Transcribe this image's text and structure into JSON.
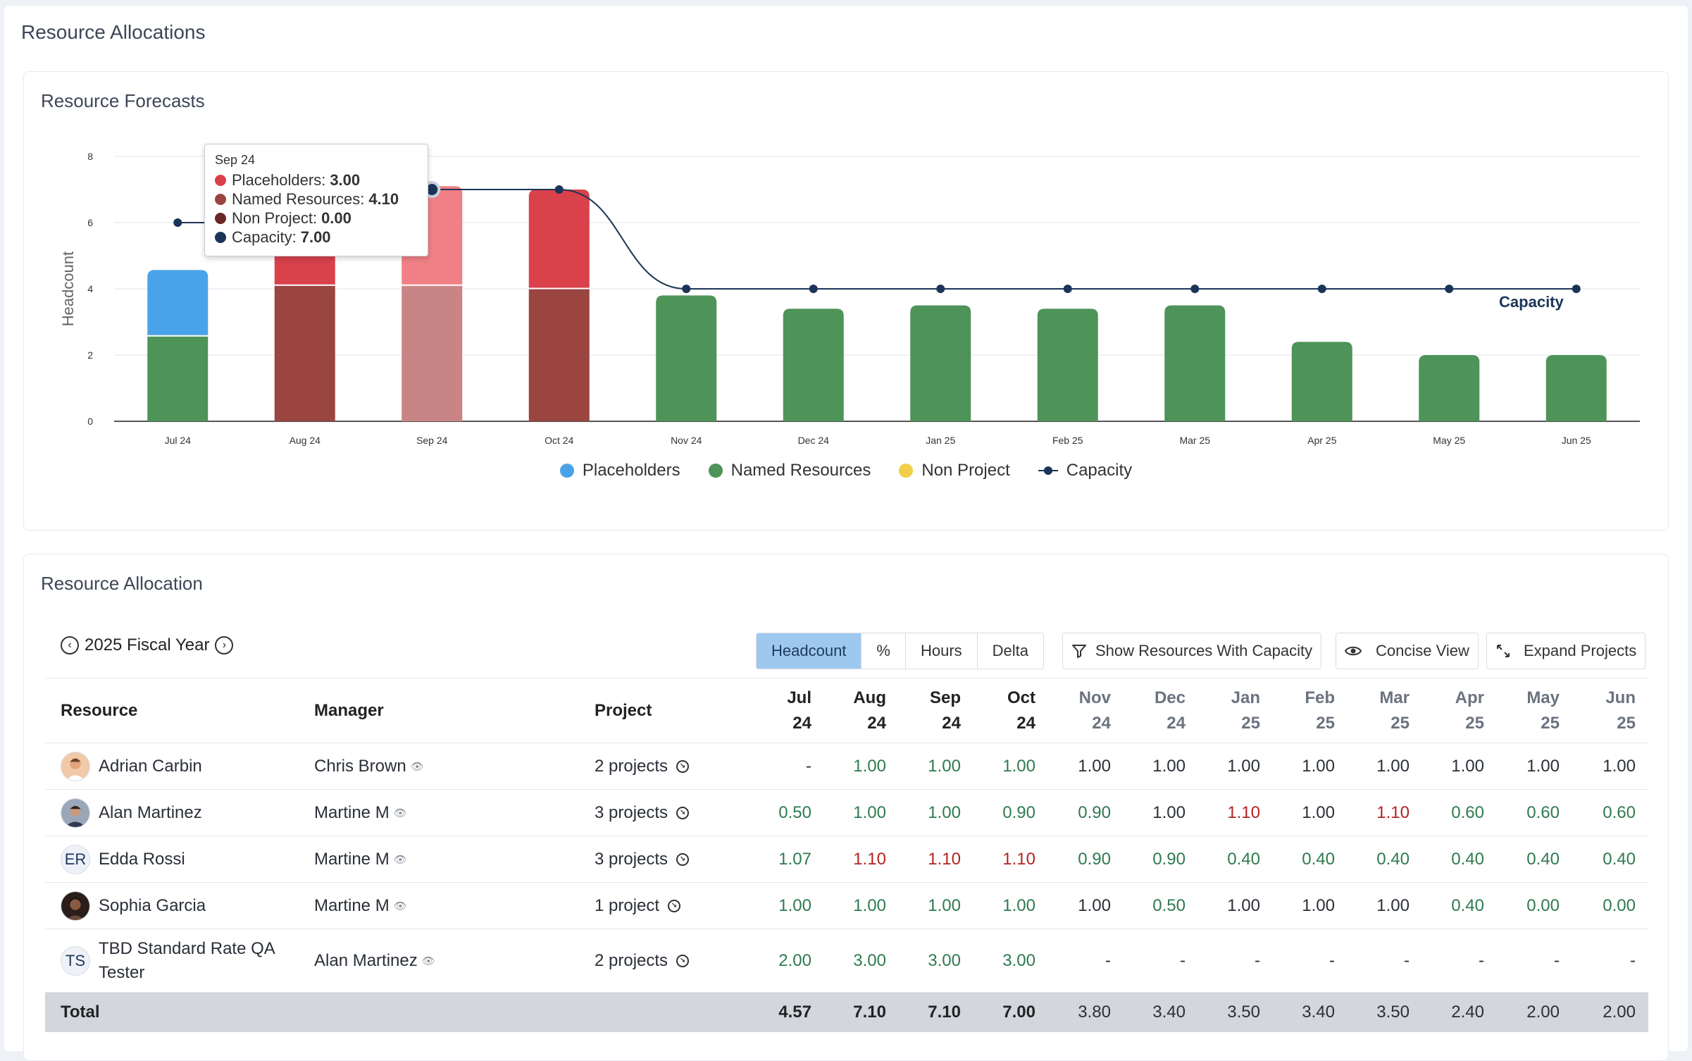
{
  "page": {
    "title": "Resource Allocations"
  },
  "forecast": {
    "title": "Resource Forecasts",
    "tooltip": {
      "header": "Sep 24",
      "rows": [
        {
          "label": "Placeholders: ",
          "value": "3.00",
          "color": "#d9414b"
        },
        {
          "label": "Named Resources: ",
          "value": "4.10",
          "color": "#9a4540"
        },
        {
          "label": "Non Project: ",
          "value": "0.00",
          "color": "#6b2626"
        },
        {
          "label": "Capacity: ",
          "value": "7.00",
          "color": "#1b3558"
        }
      ]
    },
    "legend": [
      {
        "label": "Placeholders",
        "color": "#4aa3e8",
        "type": "dot"
      },
      {
        "label": "Named Resources",
        "color": "#4e9358",
        "type": "dot"
      },
      {
        "label": "Non Project",
        "color": "#f2cf4a",
        "type": "dot"
      },
      {
        "label": "Capacity",
        "color": "#1b3558",
        "type": "line"
      }
    ]
  },
  "chart_data": {
    "type": "bar",
    "ylabel": "Headcount",
    "ylim": [
      0,
      8
    ],
    "yticks": [
      0,
      2,
      4,
      6,
      8
    ],
    "categories": [
      "Jul 24",
      "Aug 24",
      "Sep 24",
      "Oct 24",
      "Nov 24",
      "Dec 24",
      "Jan 25",
      "Feb 25",
      "Mar 25",
      "Apr 25",
      "May 25",
      "Jun 25"
    ],
    "series": [
      {
        "name": "Named Resources",
        "values": [
          2.57,
          4.1,
          4.1,
          4.0,
          3.8,
          3.4,
          3.5,
          3.4,
          3.5,
          2.4,
          2.0,
          2.0
        ]
      },
      {
        "name": "Placeholders",
        "values": [
          2.0,
          3.0,
          3.0,
          3.0,
          0,
          0,
          0,
          0,
          0,
          0,
          0,
          0
        ]
      },
      {
        "name": "Non Project",
        "values": [
          0,
          0,
          0,
          0,
          0,
          0,
          0,
          0,
          0,
          0,
          0,
          0
        ]
      },
      {
        "name": "Capacity",
        "type": "line",
        "values": [
          6,
          6,
          7,
          7,
          4,
          4,
          4,
          4,
          4,
          4,
          4,
          4
        ]
      }
    ],
    "capacity_label": "Capacity",
    "highlight_category": "Sep 24",
    "colors": {
      "named": "#4e9358",
      "placeholders": "#4aa3e8",
      "named_highlight": "#9a4540",
      "placeholders_highlight": "#d9414b",
      "named_hover": "#c98585",
      "placeholders_hover": "#f08085",
      "capacity": "#1b3558"
    }
  },
  "allocation": {
    "title": "Resource Allocation",
    "fiscal_year": "2025 Fiscal Year",
    "view_modes": [
      "Headcount",
      "%",
      "Hours",
      "Delta"
    ],
    "active_view": "Headcount",
    "show_capacity_label": "Show Resources With Capacity",
    "concise_label": "Concise View",
    "expand_label": "Expand Projects",
    "headers": {
      "resource": "Resource",
      "manager": "Manager",
      "project": "Project"
    },
    "months": [
      {
        "m": "Jul",
        "y": "24"
      },
      {
        "m": "Aug",
        "y": "24"
      },
      {
        "m": "Sep",
        "y": "24"
      },
      {
        "m": "Oct",
        "y": "24"
      },
      {
        "m": "Nov",
        "y": "24"
      },
      {
        "m": "Dec",
        "y": "24"
      },
      {
        "m": "Jan",
        "y": "25"
      },
      {
        "m": "Feb",
        "y": "25"
      },
      {
        "m": "Mar",
        "y": "25"
      },
      {
        "m": "Apr",
        "y": "25"
      },
      {
        "m": "May",
        "y": "25"
      },
      {
        "m": "Jun",
        "y": "25"
      }
    ],
    "rows": [
      {
        "name": "Adrian Carbin",
        "avatar": "photo-1",
        "manager": "Chris Brown",
        "projects": "2 projects",
        "values": [
          "-",
          "1.00",
          "1.00",
          "1.00",
          "1.00",
          "1.00",
          "1.00",
          "1.00",
          "1.00",
          "1.00",
          "1.00",
          "1.00"
        ],
        "colors": [
          "n",
          "g",
          "g",
          "g",
          "n",
          "n",
          "n",
          "n",
          "n",
          "n",
          "n",
          "n"
        ]
      },
      {
        "name": "Alan Martinez",
        "avatar": "photo-2",
        "manager": "Martine M",
        "projects": "3 projects",
        "values": [
          "0.50",
          "1.00",
          "1.00",
          "0.90",
          "0.90",
          "1.00",
          "1.10",
          "1.00",
          "1.10",
          "0.60",
          "0.60",
          "0.60"
        ],
        "colors": [
          "g",
          "g",
          "g",
          "g",
          "g",
          "n",
          "r",
          "n",
          "r",
          "g",
          "g",
          "g"
        ]
      },
      {
        "name": "Edda Rossi",
        "avatar": "ER",
        "manager": "Martine M",
        "projects": "3 projects",
        "values": [
          "1.07",
          "1.10",
          "1.10",
          "1.10",
          "0.90",
          "0.90",
          "0.40",
          "0.40",
          "0.40",
          "0.40",
          "0.40",
          "0.40"
        ],
        "colors": [
          "g",
          "r",
          "r",
          "r",
          "g",
          "g",
          "g",
          "g",
          "g",
          "g",
          "g",
          "g"
        ]
      },
      {
        "name": "Sophia Garcia",
        "avatar": "photo-3",
        "manager": "Martine M",
        "projects": "1 project",
        "values": [
          "1.00",
          "1.00",
          "1.00",
          "1.00",
          "1.00",
          "0.50",
          "1.00",
          "1.00",
          "1.00",
          "0.40",
          "0.00",
          "0.00"
        ],
        "colors": [
          "g",
          "g",
          "g",
          "g",
          "n",
          "g",
          "n",
          "n",
          "n",
          "g",
          "g",
          "g"
        ]
      },
      {
        "name": "TBD Standard Rate QA Tester",
        "avatar": "TS",
        "manager": "Alan Martinez",
        "projects": "2 projects",
        "values": [
          "2.00",
          "3.00",
          "3.00",
          "3.00",
          "-",
          "-",
          "-",
          "-",
          "-",
          "-",
          "-",
          "-"
        ],
        "colors": [
          "g",
          "g",
          "g",
          "g",
          "n",
          "n",
          "n",
          "n",
          "n",
          "n",
          "n",
          "n"
        ]
      }
    ],
    "total": {
      "label": "Total",
      "values": [
        "4.57",
        "7.10",
        "7.10",
        "7.00",
        "3.80",
        "3.40",
        "3.50",
        "3.40",
        "3.50",
        "2.40",
        "2.00",
        "2.00"
      ]
    }
  }
}
